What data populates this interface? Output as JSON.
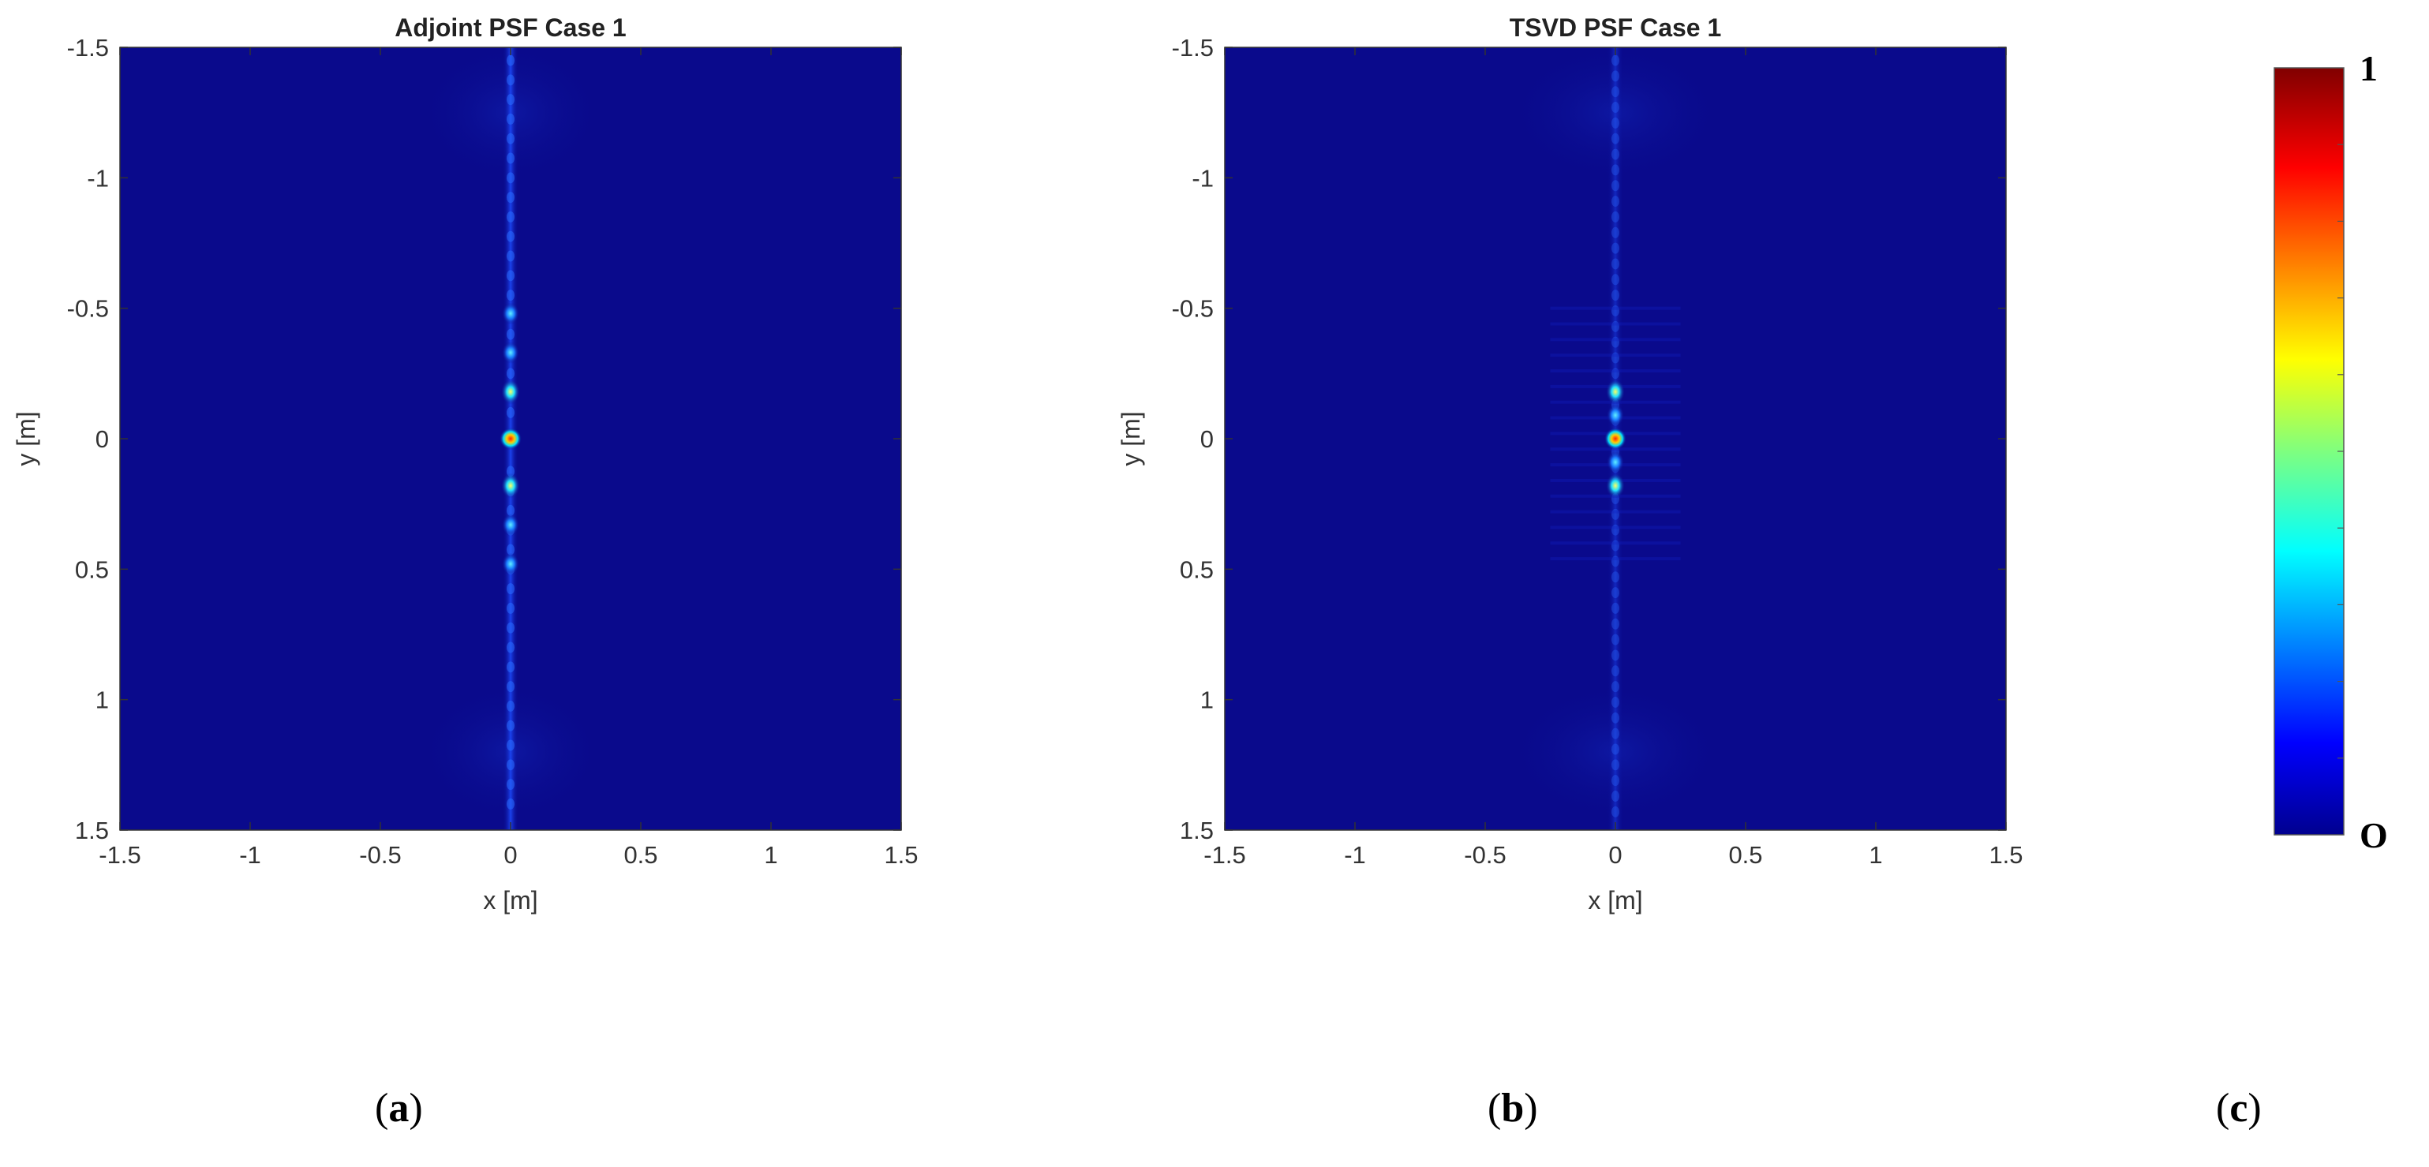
{
  "figure": {
    "captions": [
      "a",
      "b",
      "c"
    ]
  },
  "chart_data": [
    {
      "type": "heatmap",
      "title": "Adjoint PSF Case 1",
      "xlabel": "x [m]",
      "ylabel": "y [m]",
      "xlim": [
        -1.5,
        1.5
      ],
      "ylim": [
        -1.5,
        1.5
      ],
      "y_direction": "reversed",
      "xticks": [
        "-1.5",
        "-1",
        "-0.5",
        "0",
        "0.5",
        "1",
        "1.5"
      ],
      "yticks": [
        "-1.5",
        "-1",
        "-0.5",
        "0",
        "0.5",
        "1",
        "1.5"
      ],
      "peaks": [
        {
          "x": 0,
          "y": 0,
          "value": 1.0
        },
        {
          "x": 0,
          "y": -0.18,
          "value": 0.55
        },
        {
          "x": 0,
          "y": 0.18,
          "value": 0.55
        },
        {
          "x": 0,
          "y": -0.33,
          "value": 0.4
        },
        {
          "x": 0,
          "y": 0.33,
          "value": 0.4
        },
        {
          "x": 0,
          "y": -0.48,
          "value": 0.3
        },
        {
          "x": 0,
          "y": 0.48,
          "value": 0.3
        }
      ],
      "colormap": "jet",
      "background_color": "#0a0a8c"
    },
    {
      "type": "heatmap",
      "title": "TSVD PSF Case 1",
      "xlabel": "x [m]",
      "ylabel": "y [m]",
      "xlim": [
        -1.5,
        1.5
      ],
      "ylim": [
        -1.5,
        1.5
      ],
      "y_direction": "reversed",
      "xticks": [
        "-1.5",
        "-1",
        "-0.5",
        "0",
        "0.5",
        "1",
        "1.5"
      ],
      "yticks": [
        "-1.5",
        "-1",
        "-0.5",
        "0",
        "0.5",
        "1",
        "1.5"
      ],
      "peaks": [
        {
          "x": 0,
          "y": 0,
          "value": 1.0
        },
        {
          "x": 0,
          "y": -0.18,
          "value": 0.45
        },
        {
          "x": 0,
          "y": 0.18,
          "value": 0.45
        },
        {
          "x": 0,
          "y": -0.09,
          "value": 0.3
        },
        {
          "x": 0,
          "y": 0.09,
          "value": 0.3
        }
      ],
      "colormap": "jet",
      "background_color": "#0a0a8c"
    },
    {
      "type": "colorbar",
      "colormap": "jet",
      "range": [
        0,
        1
      ],
      "max_label": "1",
      "min_label": "O"
    }
  ]
}
